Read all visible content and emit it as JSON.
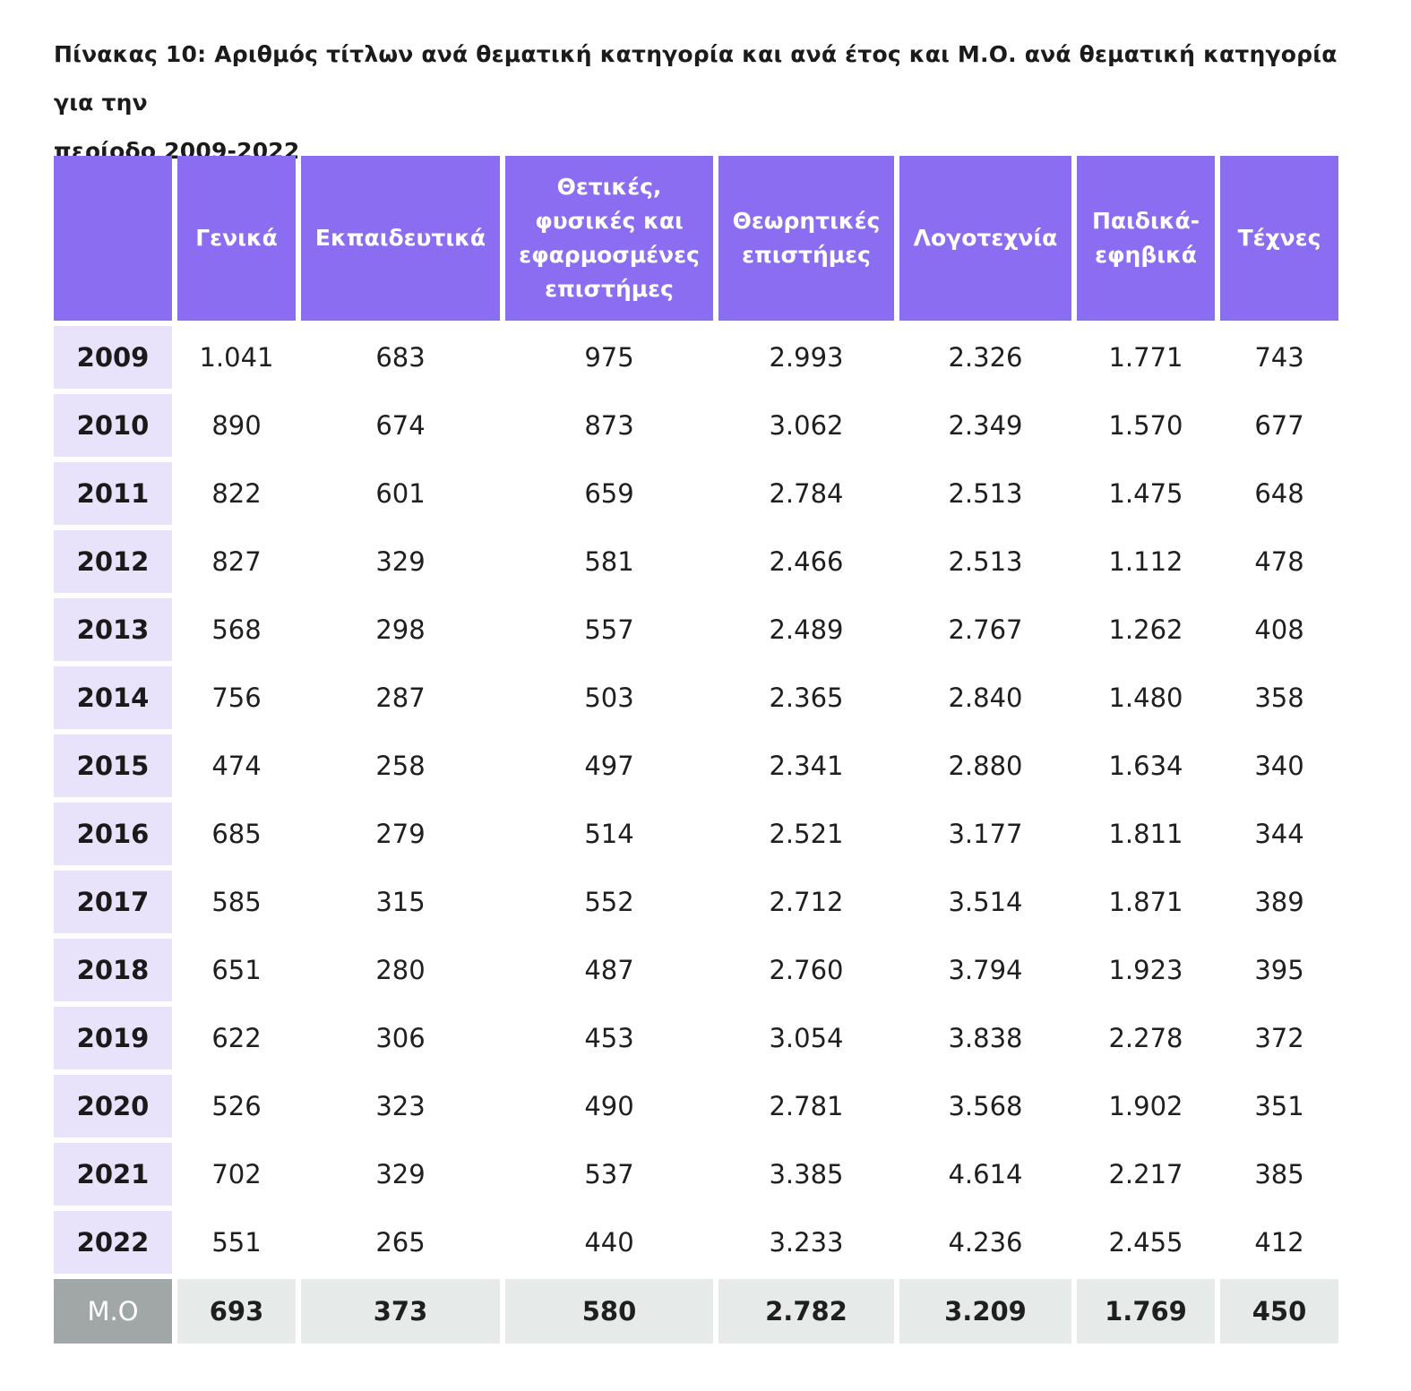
{
  "caption": {
    "line1": "Πίνακας 10: Αριθμός τίτλων ανά θεματική κατηγορία και ανά έτος και Μ.Ο. ανά θεματική κατηγορία για την",
    "line2": "περίοδο 2009-2022"
  },
  "table": {
    "headers": [
      "",
      "Γενικά",
      "Εκπαιδευτικά",
      "Θετικές, φυσικές και εφαρμοσμένες επιστήμες",
      "Θεωρητικές επιστήμες",
      "Λογοτεχνία",
      "Παιδικά-εφηβικά",
      "Τέχνες"
    ],
    "rows": [
      [
        "2009",
        "1.041",
        "683",
        "975",
        "2.993",
        "2.326",
        "1.771",
        "743"
      ],
      [
        "2010",
        "890",
        "674",
        "873",
        "3.062",
        "2.349",
        "1.570",
        "677"
      ],
      [
        "2011",
        "822",
        "601",
        "659",
        "2.784",
        "2.513",
        "1.475",
        "648"
      ],
      [
        "2012",
        "827",
        "329",
        "581",
        "2.466",
        "2.513",
        "1.112",
        "478"
      ],
      [
        "2013",
        "568",
        "298",
        "557",
        "2.489",
        "2.767",
        "1.262",
        "408"
      ],
      [
        "2014",
        "756",
        "287",
        "503",
        "2.365",
        "2.840",
        "1.480",
        "358"
      ],
      [
        "2015",
        "474",
        "258",
        "497",
        "2.341",
        "2.880",
        "1.634",
        "340"
      ],
      [
        "2016",
        "685",
        "279",
        "514",
        "2.521",
        "3.177",
        "1.811",
        "344"
      ],
      [
        "2017",
        "585",
        "315",
        "552",
        "2.712",
        "3.514",
        "1.871",
        "389"
      ],
      [
        "2018",
        "651",
        "280",
        "487",
        "2.760",
        "3.794",
        "1.923",
        "395"
      ],
      [
        "2019",
        "622",
        "306",
        "453",
        "3.054",
        "3.838",
        "2.278",
        "372"
      ],
      [
        "2020",
        "526",
        "323",
        "490",
        "2.781",
        "3.568",
        "1.902",
        "351"
      ],
      [
        "2021",
        "702",
        "329",
        "537",
        "3.385",
        "4.614",
        "2.217",
        "385"
      ],
      [
        "2022",
        "551",
        "265",
        "440",
        "3.233",
        "4.236",
        "2.455",
        "412"
      ]
    ],
    "average": [
      "Μ.Ο",
      "693",
      "373",
      "580",
      "2.782",
      "3.209",
      "1.769",
      "450"
    ]
  },
  "colors": {
    "header_bg": "#8b6df2",
    "year_bg": "#e9e2fb",
    "avg_bg": "#e6ebe9",
    "avg_label_bg": "#a1a7a6"
  }
}
